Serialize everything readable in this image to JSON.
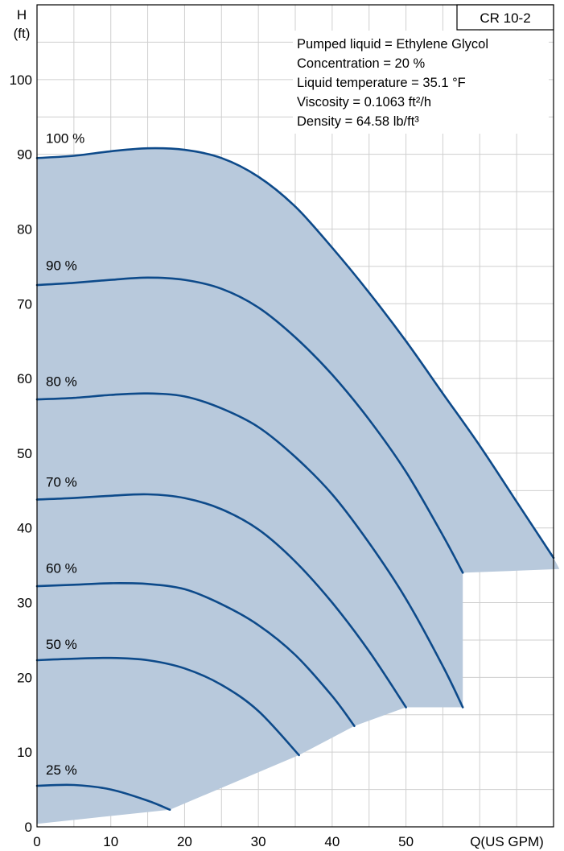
{
  "chart_data": {
    "type": "line",
    "title": "CR 10-2",
    "xlabel": "Q(US GPM)",
    "ylabel": "H",
    "ylabel_unit": "(ft)",
    "xlim": [
      0,
      70
    ],
    "ylim": [
      0,
      110
    ],
    "x_ticks": [
      0,
      10,
      20,
      30,
      40,
      50
    ],
    "y_ticks": [
      0,
      10,
      20,
      30,
      40,
      50,
      60,
      70,
      80,
      90,
      100
    ],
    "grid": true,
    "info_box": {
      "lines": [
        "Pumped liquid = Ethylene Glycol",
        "Concentration = 20 %",
        "Liquid temperature = 35.1 °F",
        "Viscosity = 0.1063 ft²/h",
        "Density = 64.58 lb/ft³"
      ]
    },
    "colors": {
      "curve": "#0d4a8a",
      "operating_area": "#b8c9dc",
      "grid": "#cfcfcf"
    },
    "series": [
      {
        "name": "100 %",
        "label_at": [
          1.2,
          91.5
        ],
        "x": [
          0,
          5,
          10,
          15,
          20,
          25,
          30,
          35,
          40,
          45,
          50,
          55,
          60,
          65,
          70
        ],
        "y": [
          89.5,
          89.8,
          90.4,
          90.8,
          90.6,
          89.5,
          87.0,
          83.0,
          77.5,
          71.5,
          65.0,
          58.0,
          51.0,
          43.5,
          36.0
        ]
      },
      {
        "name": "90 %",
        "label_at": [
          1.2,
          74.5
        ],
        "x": [
          0,
          5,
          10,
          15,
          20,
          25,
          30,
          35,
          40,
          45,
          50,
          55,
          57.7
        ],
        "y": [
          72.5,
          72.8,
          73.2,
          73.5,
          73.2,
          72.0,
          69.5,
          65.5,
          60.5,
          54.5,
          47.5,
          39.0,
          34.0
        ]
      },
      {
        "name": "80 %",
        "label_at": [
          1.2,
          59.0
        ],
        "x": [
          0,
          5,
          10,
          15,
          20,
          25,
          30,
          35,
          40,
          45,
          50,
          55,
          57.7
        ],
        "y": [
          57.2,
          57.4,
          57.8,
          58.0,
          57.6,
          56.0,
          53.5,
          49.5,
          44.5,
          38.0,
          30.5,
          21.5,
          16.0
        ]
      },
      {
        "name": "70 %",
        "label_at": [
          1.2,
          45.5
        ],
        "x": [
          0,
          5,
          10,
          15,
          20,
          25,
          30,
          35,
          40,
          45,
          50
        ],
        "y": [
          43.8,
          44.0,
          44.3,
          44.5,
          44.0,
          42.5,
          39.8,
          35.5,
          30.0,
          23.5,
          16.0
        ]
      },
      {
        "name": "60 %",
        "label_at": [
          1.2,
          34.0
        ],
        "x": [
          0,
          5,
          10,
          15,
          20,
          25,
          30,
          35,
          40,
          43
        ],
        "y": [
          32.2,
          32.4,
          32.6,
          32.5,
          31.8,
          29.8,
          27.0,
          23.0,
          17.5,
          13.5
        ]
      },
      {
        "name": "50 %",
        "label_at": [
          1.2,
          23.8
        ],
        "x": [
          0,
          5,
          10,
          15,
          20,
          25,
          30,
          35.5
        ],
        "y": [
          22.3,
          22.5,
          22.6,
          22.3,
          21.2,
          19.0,
          15.5,
          9.6
        ]
      },
      {
        "name": "25 %",
        "label_at": [
          1.2,
          7.0
        ],
        "x": [
          0,
          5,
          10,
          15,
          18
        ],
        "y": [
          5.5,
          5.6,
          5.0,
          3.5,
          2.3
        ]
      }
    ]
  }
}
